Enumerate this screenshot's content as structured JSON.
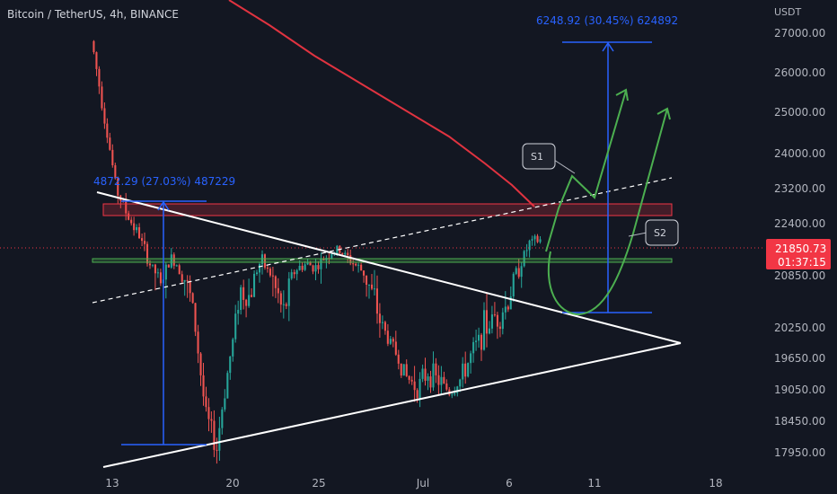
{
  "header": {
    "symbol_title": "Bitcoin / TetherUS, 4h, BINANCE"
  },
  "chart_data": {
    "type": "candlestick",
    "title": "Bitcoin / TetherUS, 4h, BINANCE",
    "y_unit": "USDT",
    "x_ticks": [
      "13",
      "20",
      "25",
      "Jul",
      "6",
      "11",
      "18"
    ],
    "y_ticks": [
      27000,
      26000,
      25000,
      24000,
      23200,
      22400,
      20850,
      20250,
      19650,
      19050,
      18450,
      17950
    ],
    "y_tick_labels": [
      "27000.00",
      "26000.00",
      "25000.00",
      "24000.00",
      "23200.00",
      "22400.00",
      "20850.00",
      "20250.00",
      "19650.00",
      "19050.00",
      "18450.00",
      "17950.00"
    ],
    "last_price": 21850.73,
    "last_price_label": "21850.73",
    "countdown": "01:37:15",
    "annotations": {
      "measure_left": "4872.29 (27.03%) 487229",
      "measure_right": "6248.92 (30.45%) 624892",
      "callout_1": "S1",
      "callout_2": "S2"
    },
    "closes_approx": [
      26500,
      24800,
      23200,
      22600,
      22100,
      21200,
      20700,
      21400,
      20900,
      20400,
      18600,
      18000,
      19400,
      20700,
      20600,
      21300,
      20800,
      20400,
      21000,
      21200,
      21100,
      21500,
      21600,
      21300,
      21000,
      20600,
      20200,
      19800,
      19300,
      19100,
      19400,
      19200,
      19000,
      19300,
      19800,
      20200,
      20400,
      20500,
      21000,
      21800,
      21900
    ]
  },
  "colors": {
    "background": "#131722",
    "candle_up": "#26a69a",
    "candle_down": "#ef5350",
    "moving_average": "#e03340",
    "measure_tool": "#2962ff",
    "projection": "#4caf50",
    "pattern_lines": "#ffffff",
    "resistance_zone": "#f23645",
    "support_zone": "#4caf50",
    "price_label": "#f23645"
  },
  "icons": [
    "measure-arrow-icon",
    "projection-arrow-icon"
  ]
}
